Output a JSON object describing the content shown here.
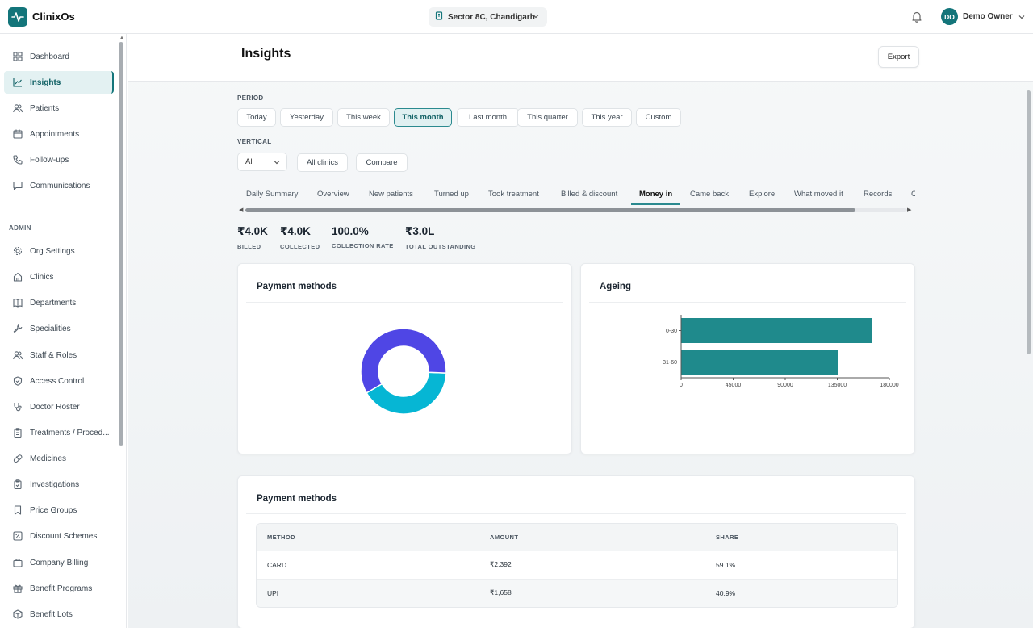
{
  "app": {
    "name": "ClinixOs"
  },
  "location": {
    "label": "Sector 8C, Chandigarh"
  },
  "user": {
    "initials": "DO",
    "name": "Demo Owner"
  },
  "sidebar": {
    "items": [
      {
        "label": "Dashboard",
        "icon": "grid-icon"
      },
      {
        "label": "Insights",
        "icon": "chart-line-icon",
        "active": true
      },
      {
        "label": "Patients",
        "icon": "users-icon"
      },
      {
        "label": "Appointments",
        "icon": "calendar-icon"
      },
      {
        "label": "Follow-ups",
        "icon": "phone-icon"
      },
      {
        "label": "Communications",
        "icon": "message-icon"
      }
    ],
    "admin_heading": "ADMIN",
    "admin_items": [
      {
        "label": "Org Settings",
        "icon": "gear-icon"
      },
      {
        "label": "Clinics",
        "icon": "home-icon"
      },
      {
        "label": "Departments",
        "icon": "book-icon"
      },
      {
        "label": "Specialities",
        "icon": "wrench-icon"
      },
      {
        "label": "Staff & Roles",
        "icon": "users-icon"
      },
      {
        "label": "Access Control",
        "icon": "shield-icon"
      },
      {
        "label": "Doctor Roster",
        "icon": "stethoscope-icon"
      },
      {
        "label": "Treatments / Proced...",
        "icon": "clipboard-icon"
      },
      {
        "label": "Medicines",
        "icon": "pill-icon"
      },
      {
        "label": "Investigations",
        "icon": "clipboard-check-icon"
      },
      {
        "label": "Price Groups",
        "icon": "bookmark-icon"
      },
      {
        "label": "Discount Schemes",
        "icon": "percent-icon"
      },
      {
        "label": "Company Billing",
        "icon": "briefcase-icon"
      },
      {
        "label": "Benefit Programs",
        "icon": "gift-icon"
      },
      {
        "label": "Benefit Lots",
        "icon": "box-icon"
      }
    ]
  },
  "page": {
    "title": "Insights",
    "export_label": "Export"
  },
  "filters": {
    "period_label": "PERIOD",
    "periods": [
      "Today",
      "Yesterday",
      "This week",
      "This month",
      "Last month",
      "This quarter",
      "This year",
      "Custom"
    ],
    "active_period": "This month",
    "vertical_label": "VERTICAL",
    "vertical_value": "All",
    "clinics_label": "All clinics",
    "compare_label": "Compare"
  },
  "tabs": [
    "Daily Summary",
    "Overview",
    "New patients",
    "Turned up",
    "Took treatment",
    "Billed & discount",
    "Money in",
    "Came back",
    "Explore",
    "What moved it",
    "Records",
    "C"
  ],
  "active_tab": "Money in",
  "kpis": [
    {
      "value": "₹4.0K",
      "label": "BILLED"
    },
    {
      "value": "₹4.0K",
      "label": "COLLECTED"
    },
    {
      "value": "100.0%",
      "label": "COLLECTION RATE"
    },
    {
      "value": "₹3.0L",
      "label": "TOTAL OUTSTANDING"
    }
  ],
  "cards": {
    "payment_methods_title": "Payment methods",
    "ageing_title": "Ageing",
    "table_title": "Payment methods"
  },
  "chart_data": [
    {
      "type": "pie",
      "title": "Payment methods",
      "categories": [
        "CARD",
        "UPI"
      ],
      "values": [
        2392,
        1658
      ],
      "colors": [
        "#4f46e5",
        "#06b6d4"
      ]
    },
    {
      "type": "bar",
      "orientation": "horizontal",
      "title": "Ageing",
      "categories": [
        "0-30",
        "31-60"
      ],
      "values": [
        165000,
        135000
      ],
      "xlim": [
        0,
        180000
      ],
      "x_ticks": [
        "0",
        "45000",
        "90000",
        "135000",
        "180000"
      ],
      "color": "#1f8a8c"
    }
  ],
  "table": {
    "headers": [
      "METHOD",
      "AMOUNT",
      "SHARE"
    ],
    "rows": [
      [
        "CARD",
        "₹2,392",
        "59.1%"
      ],
      [
        "UPI",
        "₹1,658",
        "40.9%"
      ]
    ]
  },
  "colors": {
    "accent": "#13757a",
    "active_bg": "#e3f1f2"
  }
}
